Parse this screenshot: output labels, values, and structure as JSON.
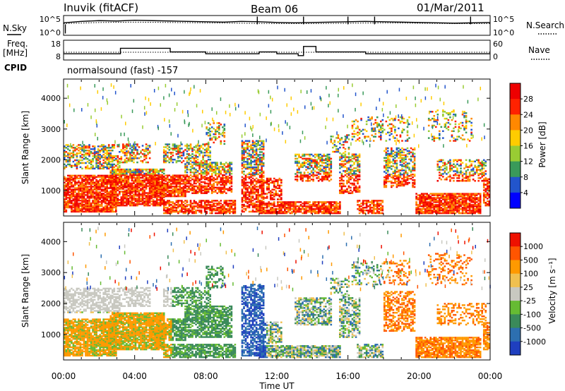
{
  "header": {
    "station": "Inuvik (fitACF)",
    "beam": "Beam 06",
    "date": "01/Mar/2011"
  },
  "side_labels": {
    "nsky": "N.Sky",
    "freq_line1": "Freq.",
    "freq_line2": "[MHz]",
    "cpid": "CPID",
    "nsearch": "N.Search",
    "nave": "Nave"
  },
  "cpid_text": "normalsound (fast) -157",
  "chart_data": [
    {
      "type": "line",
      "panel": "noise",
      "y_ticks_left": [
        "10^5",
        "10^0"
      ],
      "y_ticks_right": [
        "10^5",
        "10^0"
      ],
      "series": [
        {
          "name": "N.Sky",
          "style": "solid",
          "x": [
            0,
            1,
            2,
            3,
            4,
            5,
            6,
            7,
            8,
            9,
            10,
            11,
            12,
            13,
            14,
            15,
            16,
            17,
            18,
            19,
            20,
            21,
            22,
            23,
            24
          ],
          "y": [
            3.2,
            3.6,
            3.8,
            3.7,
            3.9,
            3.8,
            3.7,
            3.6,
            3.5,
            3.4,
            3.6,
            3.5,
            3.3,
            3.2,
            3.3,
            3.4,
            3.5,
            3.6,
            3.5,
            3.4,
            3.3,
            3.2,
            3.1,
            3.2,
            3.3
          ]
        },
        {
          "name": "N.Search",
          "style": "dotted",
          "x": [
            0,
            2,
            4,
            6,
            8,
            10,
            12,
            14,
            16,
            18,
            20,
            22,
            24
          ],
          "y": [
            3.0,
            3.3,
            3.4,
            3.3,
            3.2,
            3.1,
            3.0,
            3.0,
            3.1,
            3.2,
            3.1,
            3.0,
            3.0
          ]
        }
      ]
    },
    {
      "type": "line",
      "panel": "frequency",
      "y_ticks_left": [
        "18",
        "8"
      ],
      "y_ticks_right": [
        "60",
        "0"
      ],
      "series": [
        {
          "name": "Freq.",
          "style": "solid",
          "x": [
            0,
            0.5,
            3,
            3.2,
            6,
            6.2,
            7.2,
            8,
            10,
            10.8,
            11,
            12,
            13.2,
            13.5,
            14.2,
            16,
            17,
            18,
            20,
            21,
            22,
            24
          ],
          "y": [
            11,
            11,
            11,
            14,
            12,
            12,
            12,
            11,
            11,
            11,
            12,
            11,
            10,
            15,
            12,
            12,
            11,
            11,
            11,
            11,
            11,
            11
          ]
        },
        {
          "name": "Nave",
          "style": "dotted",
          "x": [
            0,
            24
          ],
          "y": [
            23,
            23
          ]
        }
      ]
    },
    {
      "type": "heatmap",
      "panel": "power",
      "ylabel": "Slant Range [km]",
      "y_ticks": [
        "1000",
        "2000",
        "3000",
        "4000"
      ],
      "ylim": [
        200,
        4600
      ],
      "xlim": [
        0,
        24
      ],
      "colorbar_label": "Power [dB]",
      "colorbar_ticks": [
        "4",
        "8",
        "12",
        "16",
        "20",
        "24",
        "28"
      ],
      "colors": [
        "#0000ff",
        "#2255cc",
        "#3a9a5a",
        "#99cc33",
        "#ffcc00",
        "#ff8800",
        "#ff2200",
        "#ee0000"
      ]
    },
    {
      "type": "heatmap",
      "panel": "velocity",
      "ylabel": "Slant Range [km]",
      "y_ticks": [
        "1000",
        "2000",
        "3000",
        "4000"
      ],
      "ylim": [
        200,
        4600
      ],
      "xlim": [
        0,
        24
      ],
      "xlabel": "Time UT",
      "x_ticks": [
        "00:00",
        "04:00",
        "08:00",
        "12:00",
        "16:00",
        "20:00",
        "00:00"
      ],
      "colorbar_label": "Velocity [m s⁻¹]",
      "colorbar_ticks": [
        "1000",
        "500",
        "100",
        "25",
        "-25",
        "-100",
        "-500",
        "-1000"
      ],
      "colors": [
        "#1f3fbf",
        "#2d6fb0",
        "#3a8a5a",
        "#66bb33",
        "#c8c8c0",
        "#f0c050",
        "#ff9900",
        "#ff5500",
        "#ee1100"
      ]
    }
  ]
}
